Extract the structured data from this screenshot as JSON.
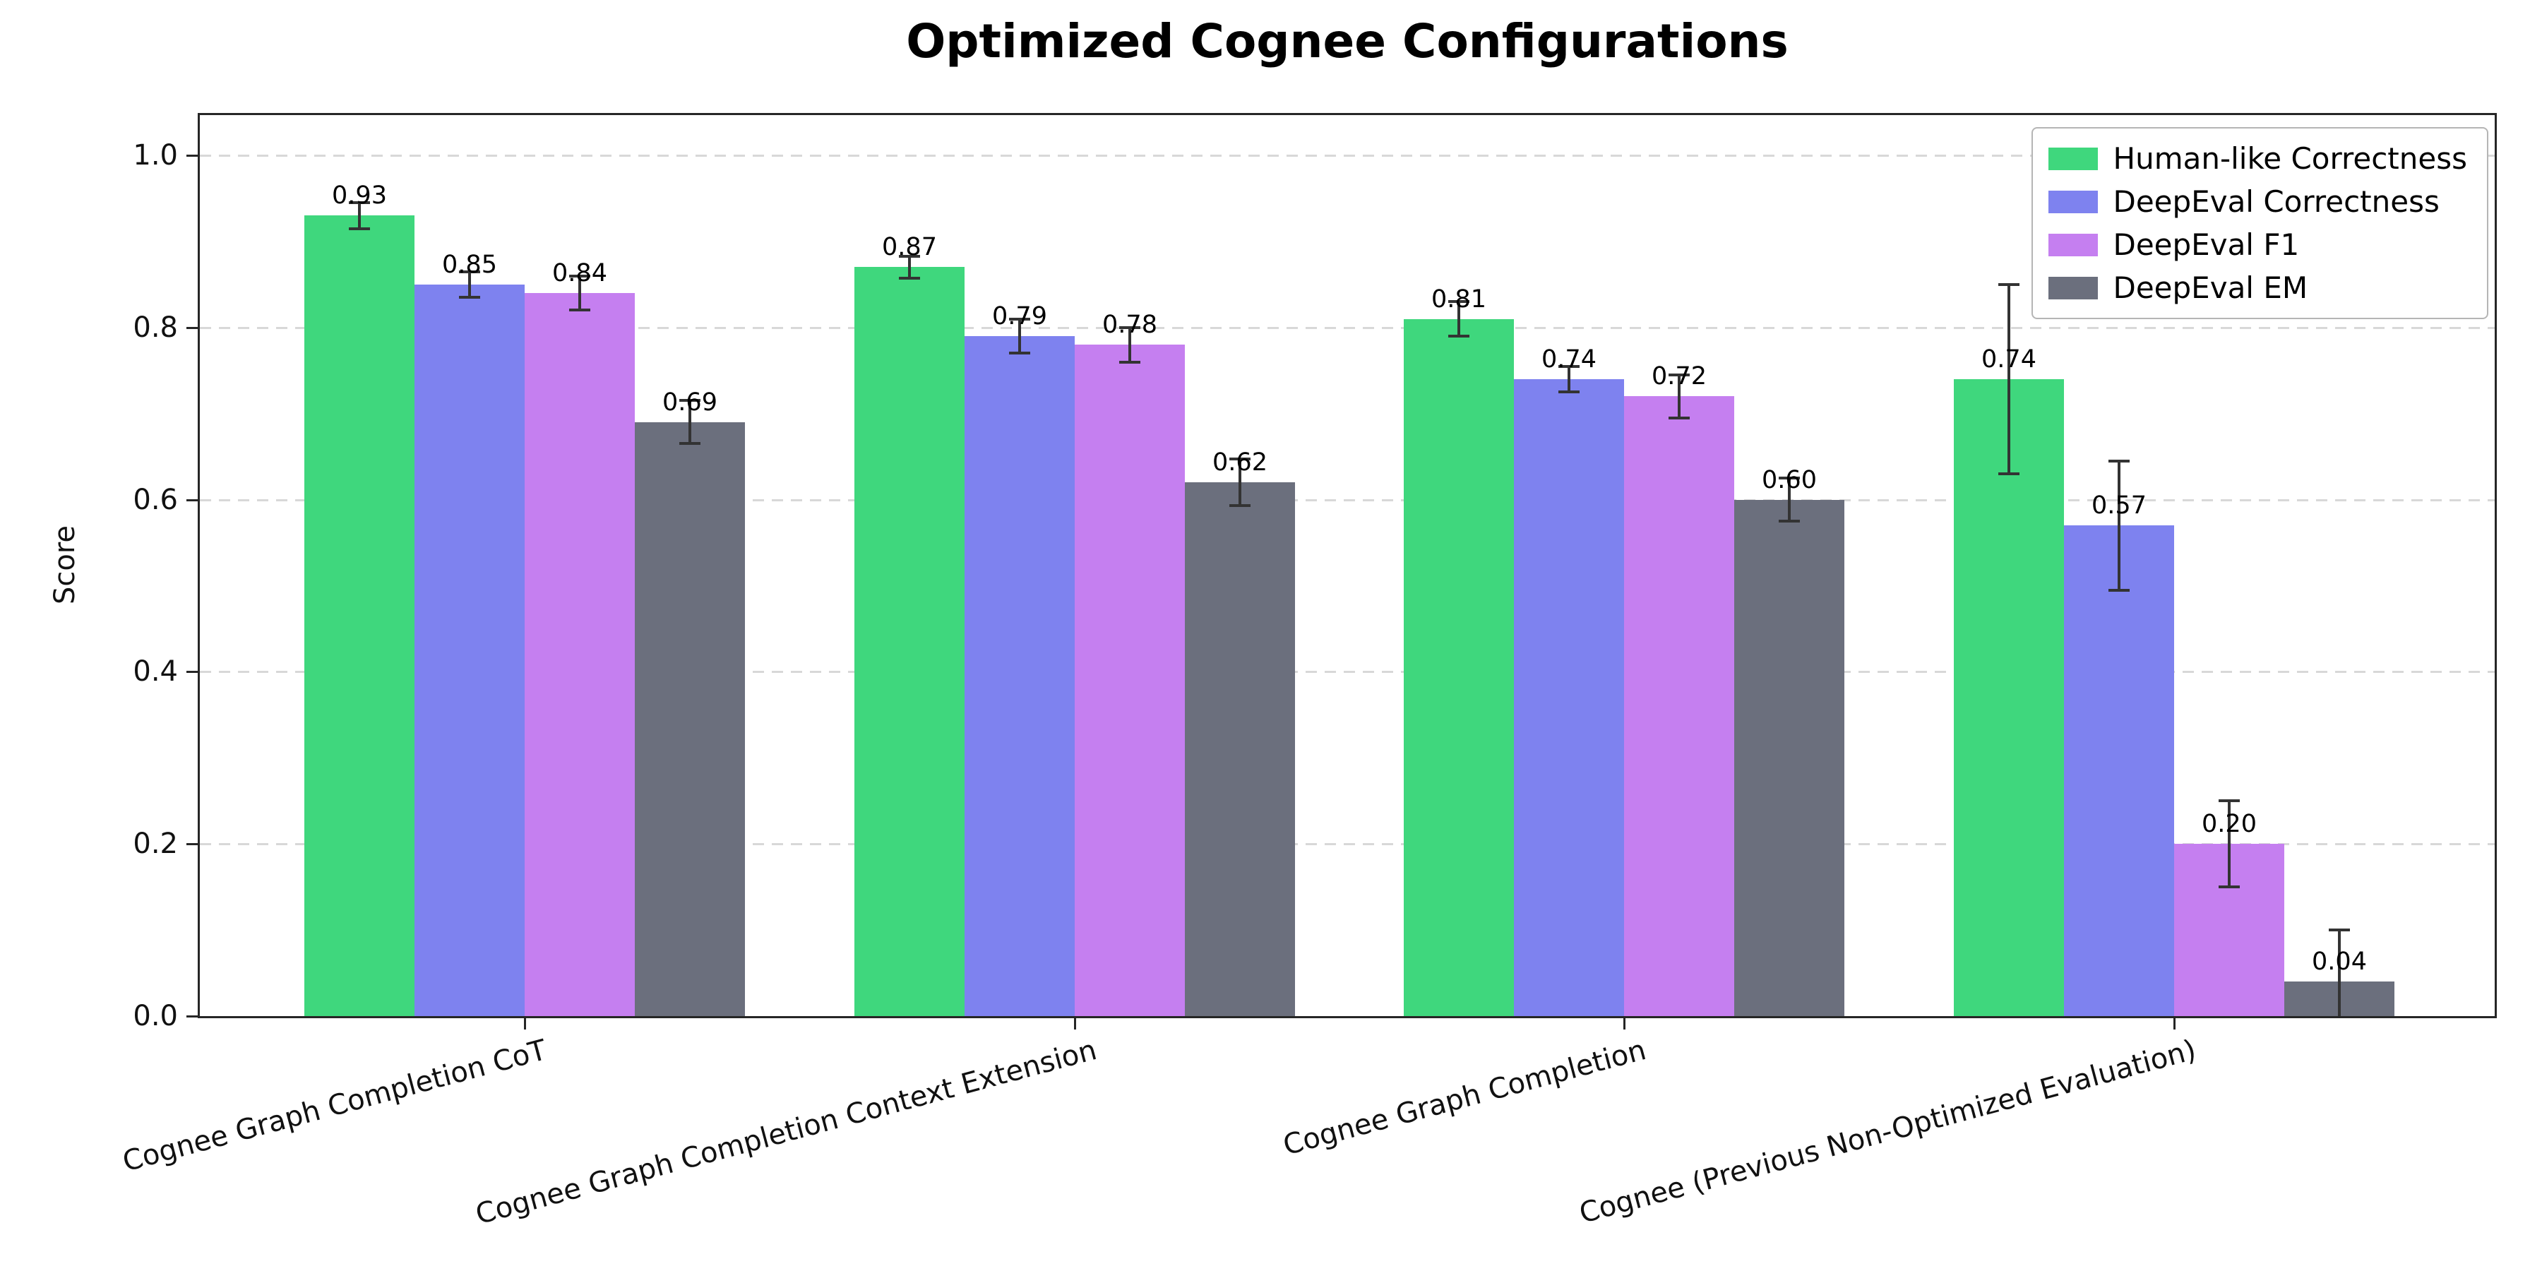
{
  "title": "Optimized Cognee Configurations",
  "chart_data": {
    "type": "bar",
    "title": "Optimized Cognee Configurations",
    "xlabel": "",
    "ylabel": "Score",
    "ylim": [
      0,
      1.05
    ],
    "yticks": [
      "0.0",
      "0.2",
      "0.4",
      "0.6",
      "0.8",
      "1.0"
    ],
    "grid": "horizontal-dashed",
    "legend_position": "upper-right",
    "error_bars": true,
    "categories": [
      "Cognee Graph Completion CoT",
      "Cognee Graph Completion Context Extension",
      "Cognee Graph Completion",
      "Cognee (Previous Non-Optimized Evaluation)"
    ],
    "series": [
      {
        "name": "Human-like Correctness",
        "color": "#3fd77d",
        "values": [
          0.93,
          0.87,
          0.81,
          0.74
        ],
        "errors": [
          0.015,
          0.013,
          0.02,
          0.11
        ]
      },
      {
        "name": "DeepEval Correctness",
        "color": "#7e82ef",
        "values": [
          0.85,
          0.79,
          0.74,
          0.57
        ],
        "errors": [
          0.015,
          0.02,
          0.015,
          0.075
        ]
      },
      {
        "name": "DeepEval F1",
        "color": "#c57ff0",
        "values": [
          0.84,
          0.78,
          0.72,
          0.2
        ],
        "errors": [
          0.02,
          0.02,
          0.025,
          0.05
        ]
      },
      {
        "name": "DeepEval EM",
        "color": "#6b6f7d",
        "values": [
          0.69,
          0.62,
          0.6,
          0.04
        ],
        "errors": [
          0.025,
          0.027,
          0.025,
          0.06
        ]
      }
    ]
  },
  "colors": {
    "grid": "#d8d8d8",
    "spine": "#262626",
    "error_bar": "#333333",
    "background": "#ffffff",
    "legend_border": "#b5b5b5"
  }
}
